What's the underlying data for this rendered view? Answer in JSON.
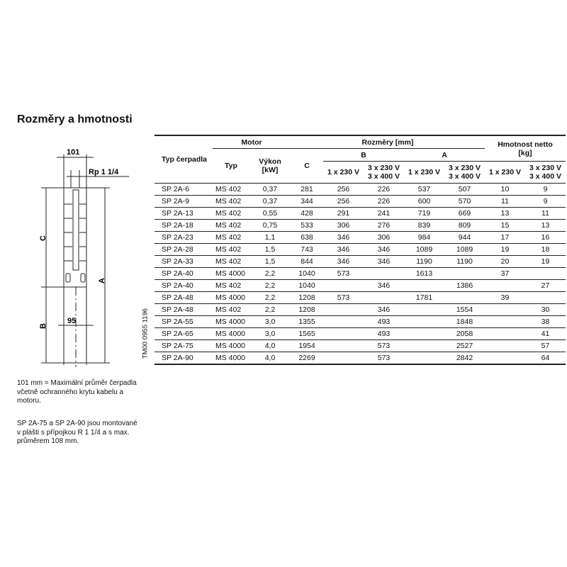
{
  "title": "Rozměry a hmotnosti",
  "drawing": {
    "d101": "101",
    "rp": "Rp 1 1/4",
    "c": "C",
    "a": "A",
    "b": "B",
    "d95": "95",
    "code": "TM00 0955 1196"
  },
  "table": {
    "h_pump": "Typ čerpadla",
    "h_motor": "Motor",
    "h_typ": "Typ",
    "h_power": "Výkon",
    "h_power_unit": "[kW]",
    "h_c": "C",
    "h_dims": "Rozměry [mm]",
    "h_b": "B",
    "h_a": "A",
    "h_weight": "Hmotnost netto",
    "h_weight_unit": "[kg]",
    "v1": "1 x 230 V",
    "v3a": "3 x 230 V",
    "v3b": "3 x 400 V",
    "rows": [
      [
        "SP 2A-6",
        "MS 402",
        "0,37",
        "281",
        "256",
        "226",
        "537",
        "507",
        "10",
        "9"
      ],
      [
        "SP 2A-9",
        "MS 402",
        "0,37",
        "344",
        "256",
        "226",
        "600",
        "570",
        "11",
        "9"
      ],
      [
        "SP 2A-13",
        "MS 402",
        "0,55",
        "428",
        "291",
        "241",
        "719",
        "669",
        "13",
        "11"
      ],
      [
        "SP 2A-18",
        "MS 402",
        "0,75",
        "533",
        "306",
        "276",
        "839",
        "809",
        "15",
        "13"
      ],
      [
        "SP 2A-23",
        "MS 402",
        "1,1",
        "638",
        "346",
        "306",
        "984",
        "944",
        "17",
        "16"
      ],
      [
        "SP 2A-28",
        "MS 402",
        "1,5",
        "743",
        "346",
        "346",
        "1089",
        "1089",
        "19",
        "18"
      ],
      [
        "SP 2A-33",
        "MS 402",
        "1,5",
        "844",
        "346",
        "346",
        "1190",
        "1190",
        "20",
        "19"
      ],
      [
        "SP 2A-40",
        "MS 4000",
        "2,2",
        "1040",
        "573",
        "",
        "1613",
        "",
        "37",
        ""
      ],
      [
        "SP 2A-40",
        "MS 402",
        "2,2",
        "1040",
        "",
        "346",
        "",
        "1386",
        "",
        "27"
      ],
      [
        "SP 2A-48",
        "MS 4000",
        "2,2",
        "1208",
        "573",
        "",
        "1781",
        "",
        "39",
        ""
      ],
      [
        "SP 2A-48",
        "MS 402",
        "2,2",
        "1208",
        "",
        "346",
        "",
        "1554",
        "",
        "30"
      ],
      [
        "SP 2A-55",
        "MS 4000",
        "3,0",
        "1355",
        "",
        "493",
        "",
        "1848",
        "",
        "38"
      ],
      [
        "SP 2A-65",
        "MS 4000",
        "3,0",
        "1565",
        "",
        "493",
        "",
        "2058",
        "",
        "41"
      ],
      [
        "SP 2A-75",
        "MS 4000",
        "4,0",
        "1954",
        "",
        "573",
        "",
        "2527",
        "",
        "57"
      ],
      [
        "SP 2A-90",
        "MS 4000",
        "4,0",
        "2269",
        "",
        "573",
        "",
        "2842",
        "",
        "64"
      ]
    ]
  },
  "notes": [
    "101 mm = Maximální průměr čerpadla včetně ochranného krytu kabelu a motoru.",
    "SP 2A-75 a SP 2A-90 jsou montované v plášti s přípojkou R 1 1/4 a s max. průměrem 108 mm."
  ]
}
